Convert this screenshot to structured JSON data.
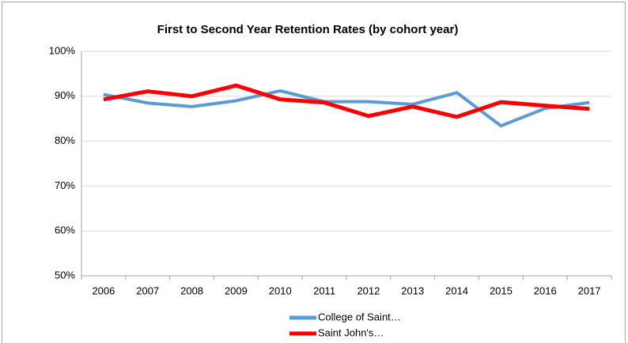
{
  "chart_data": {
    "type": "line",
    "title": "First to Second Year Retention Rates (by cohort year)",
    "categories": [
      "2006",
      "2007",
      "2008",
      "2009",
      "2010",
      "2011",
      "2012",
      "2013",
      "2014",
      "2015",
      "2016",
      "2017"
    ],
    "series": [
      {
        "name": "College of Saint…",
        "color": "#5b9bd5",
        "values": [
          90.4,
          88.5,
          87.7,
          89.0,
          91.2,
          88.8,
          88.8,
          88.2,
          90.8,
          83.4,
          87.3,
          88.6
        ]
      },
      {
        "name": "Saint John's…",
        "color": "#ff0000",
        "values": [
          89.3,
          91.1,
          90.0,
          92.4,
          89.3,
          88.6,
          85.6,
          87.7,
          85.4,
          88.7,
          87.9,
          87.2
        ]
      }
    ],
    "ylim": [
      50,
      100
    ],
    "yticks": [
      {
        "value": 50,
        "label": "50%"
      },
      {
        "value": 60,
        "label": "60%"
      },
      {
        "value": 70,
        "label": "70%"
      },
      {
        "value": 80,
        "label": "80%"
      },
      {
        "value": 90,
        "label": "90%"
      },
      {
        "value": 100,
        "label": "100%"
      }
    ],
    "grid": true,
    "legend": "bottom"
  }
}
